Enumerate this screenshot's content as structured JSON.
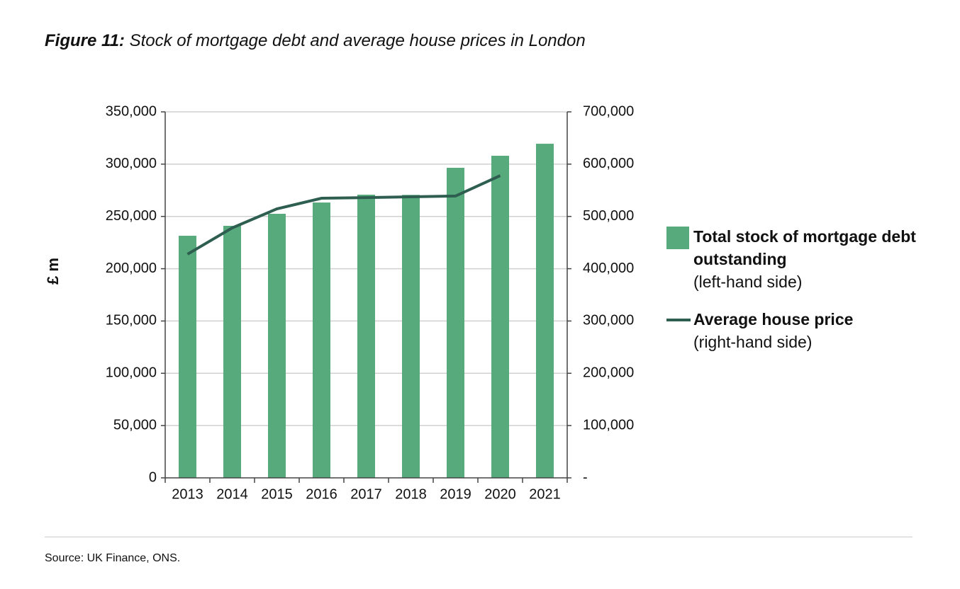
{
  "chart_data": {
    "type": "bar",
    "title_label": "Figure 11:",
    "title": "Stock of mortgage debt and average house prices in London",
    "y_label": "£ m",
    "categories": [
      "2013",
      "2014",
      "2015",
      "2016",
      "2017",
      "2018",
      "2019",
      "2020",
      "2021"
    ],
    "series": [
      {
        "name": "Total stock of mortgage debt outstanding",
        "note": "(left-hand side)",
        "type": "bar",
        "color": "#57aa7c",
        "values": [
          231500,
          241000,
          252500,
          263300,
          270800,
          270600,
          296500,
          308000,
          319500
        ]
      },
      {
        "name": "Average house price",
        "note": "(right-hand side)",
        "type": "line",
        "axis": "y2",
        "color": "#2d5e4f",
        "values": [
          427800,
          478000,
          514500,
          534800,
          536000,
          537500,
          539000,
          578000,
          null
        ]
      }
    ],
    "ylim": [
      0,
      350000
    ],
    "yticks": [
      0,
      {
        "value": 50000,
        "label": "50,000"
      },
      {
        "value": 100000,
        "label": "100,000"
      },
      {
        "value": 150000,
        "label": "150,000"
      },
      {
        "value": 200000,
        "label": "200,000"
      },
      {
        "value": 250000,
        "label": "250,000"
      },
      {
        "value": 300000,
        "label": "300,000"
      },
      {
        "value": 350000,
        "label": "350,000"
      }
    ],
    "y2lim": [
      0,
      700000
    ],
    "y2ticks": [
      {
        "value": 0,
        "label": "-"
      },
      {
        "value": 100000,
        "label": "100,000"
      },
      {
        "value": 200000,
        "label": "200,000"
      },
      {
        "value": 300000,
        "label": "300,000"
      },
      {
        "value": 400000,
        "label": "400,000"
      },
      {
        "value": 500000,
        "label": "500,000"
      },
      {
        "value": 600000,
        "label": "600,000"
      },
      {
        "value": 700000,
        "label": "700,000"
      }
    ],
    "grid": true,
    "source": "Source: UK Finance, ONS."
  }
}
